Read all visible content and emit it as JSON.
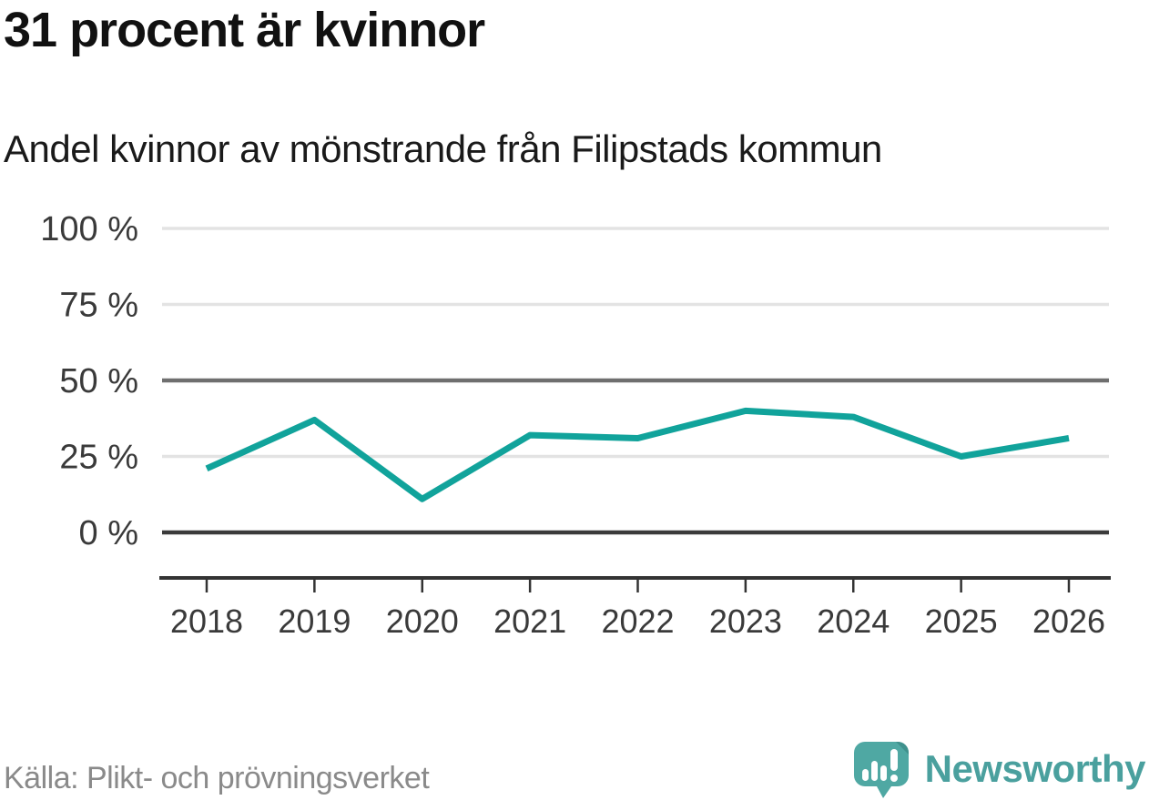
{
  "header": {
    "title": "31 procent är kvinnor",
    "subtitle": "Andel kvinnor av mönstrande från Filipstads kommun"
  },
  "chart_data": {
    "type": "line",
    "title": "31 procent är kvinnor",
    "subtitle": "Andel kvinnor av mönstrande från Filipstads kommun",
    "x": [
      "2018",
      "2019",
      "2020",
      "2021",
      "2022",
      "2023",
      "2024",
      "2025",
      "2026"
    ],
    "series": [
      {
        "name": "Andel kvinnor av mönstrande från Filipstads kommun",
        "values": [
          21,
          37,
          11,
          32,
          31,
          40,
          38,
          25,
          31
        ],
        "unit": "%"
      }
    ],
    "xlabel": "",
    "ylabel": "",
    "ylim": [
      0,
      100
    ],
    "grid": "horizontal",
    "legend_position": "none",
    "y_ticks": [
      {
        "value": 100,
        "label": "100 %",
        "style": "light"
      },
      {
        "value": 75,
        "label": "75 %",
        "style": "light"
      },
      {
        "value": 50,
        "label": "50 %",
        "style": "mid"
      },
      {
        "value": 25,
        "label": "25 %",
        "style": "light"
      },
      {
        "value": 0,
        "label": "0 %",
        "style": "dark"
      }
    ],
    "colors": {
      "line": "#11a39b",
      "grid_light": "#e3e3e3",
      "grid_mid": "#6f6f6f",
      "grid_dark": "#3b3b3b",
      "axis": "#333333",
      "tick_label": "#3a3a3a"
    }
  },
  "footer": {
    "source": "Källa: Plikt- och prövningsverket",
    "brand": "Newsworthy",
    "brand_text_color": "#4aa09e",
    "logo_bubble_color": "#4fa8a3",
    "logo_fold_color": "#3f918d"
  }
}
